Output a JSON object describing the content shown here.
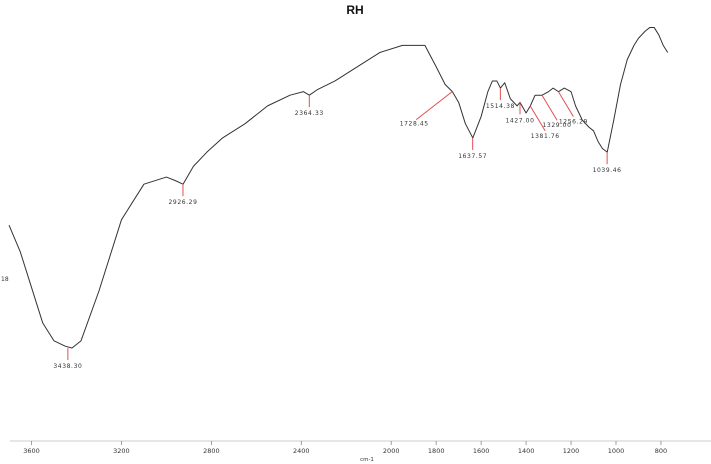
{
  "chart_data": {
    "type": "line",
    "title": "RH",
    "xlabel": "cm-1",
    "ylabel": "",
    "y_side_label": "18",
    "xlim": [
      3700,
      770
    ],
    "ylim": [
      0,
      100
    ],
    "x_ticks": [
      3600,
      3200,
      2800,
      2400,
      2000,
      1800,
      1600,
      1400,
      1200,
      1000,
      800
    ],
    "x_tick_labels": [
      "3600",
      "3200",
      "2800",
      "2400",
      "2000",
      "1800",
      "1600",
      "1400",
      "1200",
      "1000",
      "800"
    ],
    "grid": false,
    "line_color": "#333333",
    "marker_color": "#e05050",
    "series": [
      {
        "x": [
          3700,
          3650,
          3600,
          3550,
          3500,
          3450,
          3420,
          3380,
          3300,
          3200,
          3100,
          3000,
          2960,
          2926,
          2880,
          2820,
          2750,
          2650,
          2550,
          2450,
          2390,
          2364,
          2330,
          2250,
          2150,
          2050,
          1950,
          1850,
          1800,
          1760,
          1728,
          1700,
          1670,
          1637,
          1600,
          1570,
          1550,
          1530,
          1514,
          1495,
          1470,
          1440,
          1427,
          1400,
          1381,
          1360,
          1329,
          1300,
          1280,
          1256,
          1230,
          1200,
          1180,
          1150,
          1120,
          1100,
          1080,
          1060,
          1039,
          1010,
          980,
          950,
          920,
          900,
          870,
          850,
          830,
          810,
          790,
          770
        ],
        "y": [
          43.5,
          36,
          26,
          16,
          11,
          9.5,
          9,
          11,
          25,
          45,
          55,
          57,
          56,
          55,
          60,
          64,
          68,
          72,
          77,
          80,
          81,
          80,
          81.5,
          84,
          88,
          92,
          94,
          94,
          88,
          83,
          81,
          78,
          72,
          68,
          74,
          81,
          84,
          84,
          82,
          83.5,
          79,
          77,
          78,
          75,
          77,
          80,
          80,
          81,
          82,
          81,
          82,
          81,
          77,
          73,
          71,
          70,
          67,
          65,
          64,
          73,
          83,
          90,
          94,
          96,
          98,
          99,
          99,
          97,
          94,
          92
        ]
      }
    ],
    "peaks": [
      {
        "x": 3438.3,
        "y": 9.0,
        "label": "3438.30",
        "label_dx": 0,
        "label_pos": "below"
      },
      {
        "x": 2926.29,
        "y": 55.0,
        "label": "2926.29",
        "label_pos": "below"
      },
      {
        "x": 2364.33,
        "y": 80.0,
        "label": "2364.33",
        "label_pos": "below"
      },
      {
        "x": 1728.45,
        "y": 81.0,
        "label": "1728.45",
        "label_pos": "left-leader"
      },
      {
        "x": 1637.57,
        "y": 68.0,
        "label": "1637.57",
        "label_pos": "below"
      },
      {
        "x": 1514.38,
        "y": 82.0,
        "label": "1514.38",
        "label_pos": "below"
      },
      {
        "x": 1427.0,
        "y": 78.0,
        "label": "1427.00",
        "label_pos": "below"
      },
      {
        "x": 1381.76,
        "y": 77.0,
        "label": "1381.76",
        "label_pos": "right-leader"
      },
      {
        "x": 1329.0,
        "y": 80.0,
        "label": "1329.00",
        "label_pos": "right-leader"
      },
      {
        "x": 1256.29,
        "y": 81.0,
        "label": "1256.29",
        "label_pos": "right-leader"
      },
      {
        "x": 1039.46,
        "y": 64.0,
        "label": "1039.46",
        "label_pos": "below"
      }
    ]
  }
}
